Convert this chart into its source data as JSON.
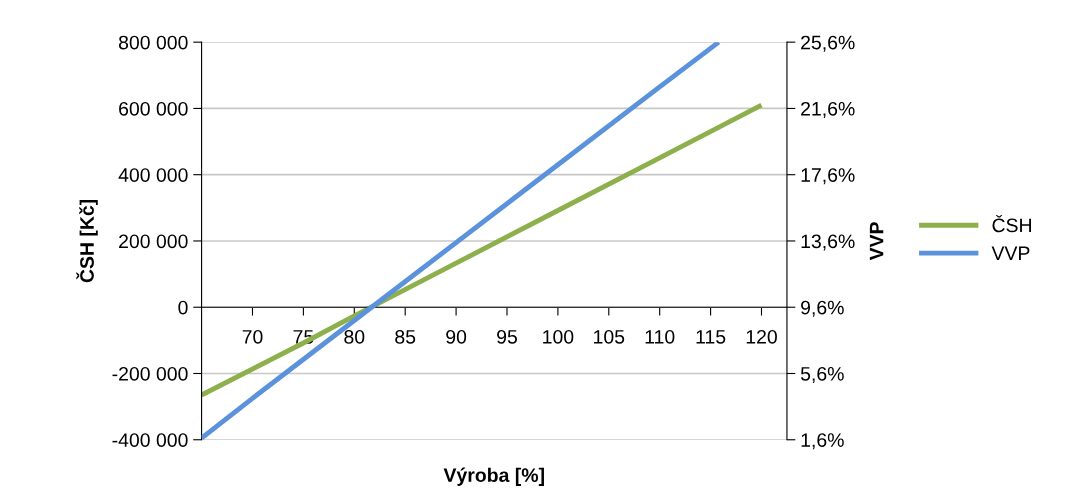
{
  "chart_data": {
    "type": "line",
    "xlabel": "Výroba [%]",
    "ylabel": "ČSH [Kč]",
    "y2label": "VVP",
    "xlim": [
      65,
      122.5
    ],
    "xticks": [
      70,
      75,
      80,
      85,
      90,
      95,
      100,
      105,
      110,
      115,
      120
    ],
    "ylim": [
      -400000,
      800000
    ],
    "yticks": [
      {
        "value": -400000,
        "label": "-400 000"
      },
      {
        "value": -200000,
        "label": "-200 000"
      },
      {
        "value": 0,
        "label": "0"
      },
      {
        "value": 200000,
        "label": "200 000"
      },
      {
        "value": 400000,
        "label": "400 000"
      },
      {
        "value": 600000,
        "label": "600 000"
      },
      {
        "value": 800000,
        "label": "800 000"
      }
    ],
    "y2lim": [
      1.6,
      25.6
    ],
    "y2ticks": [
      {
        "value": 1.6,
        "label": "1,6%"
      },
      {
        "value": 5.6,
        "label": "5,6%"
      },
      {
        "value": 9.6,
        "label": "9,6%"
      },
      {
        "value": 13.6,
        "label": "13,6%"
      },
      {
        "value": 17.6,
        "label": "17,6%"
      },
      {
        "value": 21.6,
        "label": "21,6%"
      },
      {
        "value": 25.6,
        "label": "25,6%"
      }
    ],
    "series": [
      {
        "name": "ČSH",
        "color": "#8db04c",
        "x": [
          65,
          75,
          80,
          90,
          100,
          110,
          120
        ],
        "values": [
          -265000,
          -108000,
          -26000,
          133000,
          292000,
          451000,
          610000
        ]
      },
      {
        "name": "VVP",
        "color": "#5b92dc",
        "axis": "y2",
        "x": [
          65,
          70,
          80,
          90,
          100,
          110,
          115.8
        ],
        "values": [
          1.7,
          4.1,
          8.8,
          13.5,
          18.2,
          22.9,
          25.6
        ]
      }
    ],
    "grid": "y",
    "legend": "right",
    "marker": "none",
    "line_style": "solid"
  }
}
